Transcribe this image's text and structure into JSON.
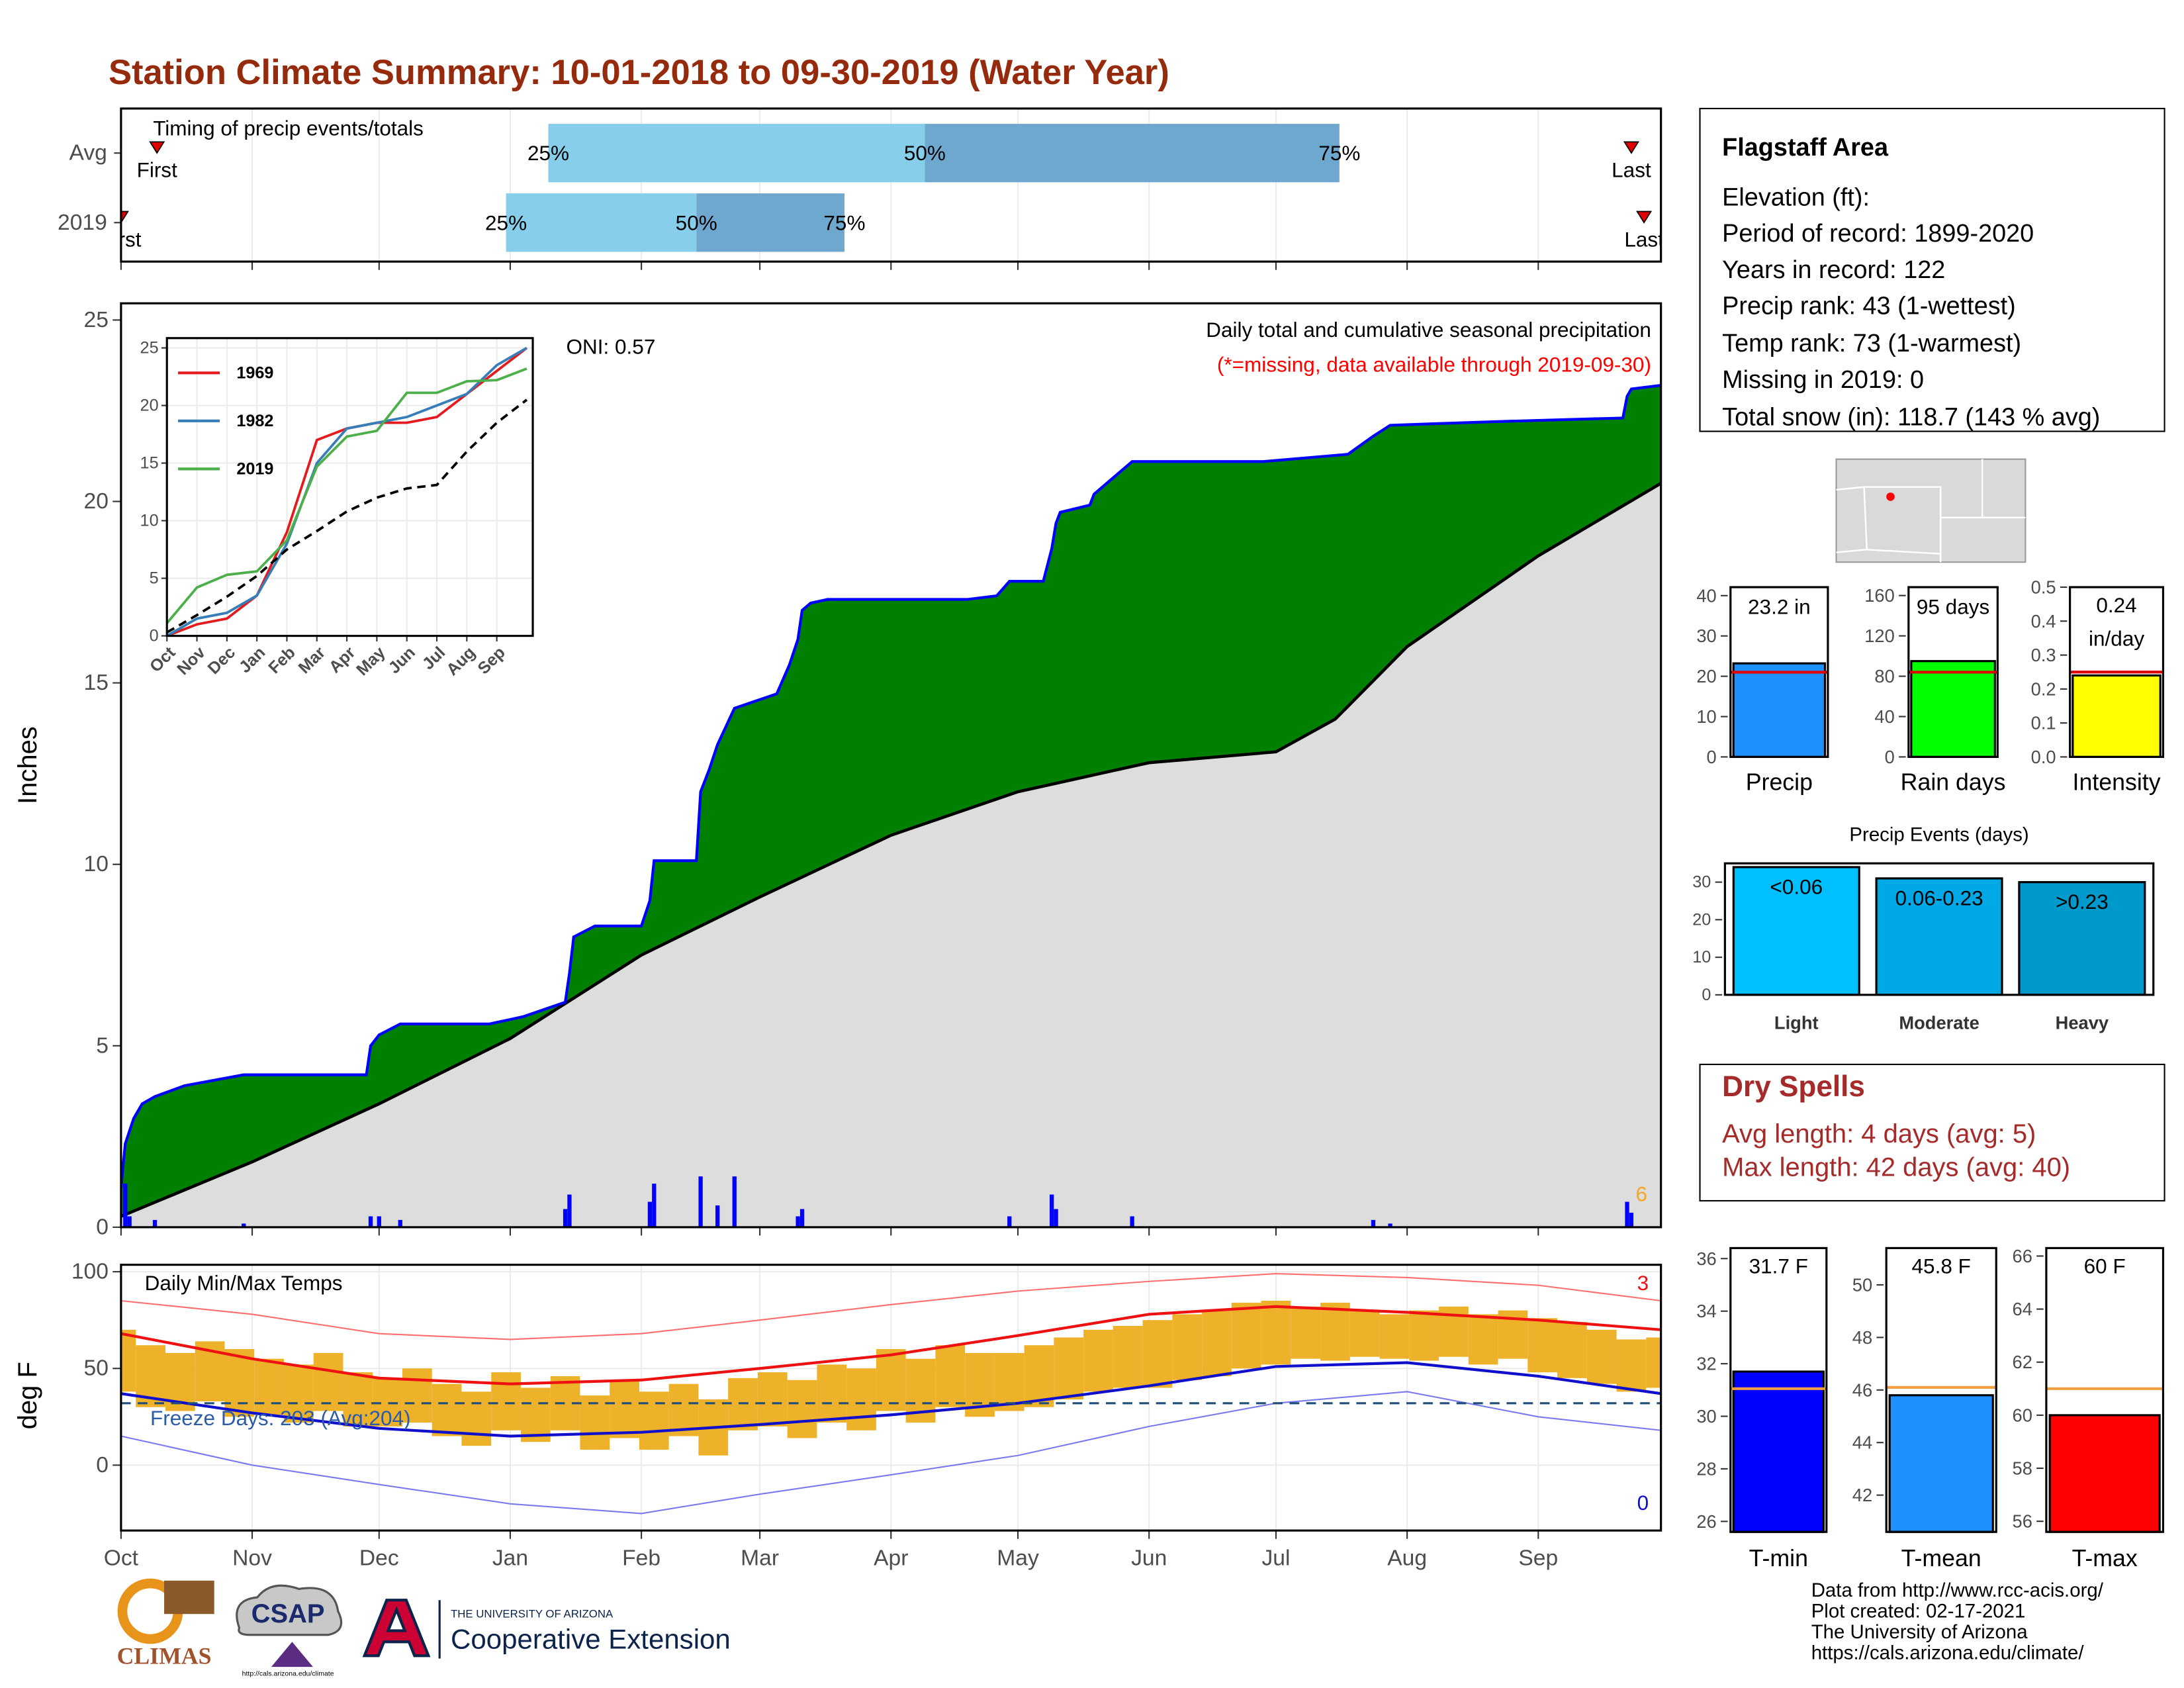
{
  "title": "Station Climate Summary: 10-01-2018 to 09-30-2019 (Water Year)",
  "chart_data": [
    {
      "type": "timing",
      "title": "Timing of precip events/totals",
      "categories": [
        "Avg",
        "2019"
      ],
      "xlim": [
        0,
        364
      ],
      "rows": [
        {
          "first": 8.5,
          "q25": 101,
          "q50": 190,
          "q75": 288,
          "last": 357
        },
        {
          "first": 0,
          "q25": 91,
          "q50": 136,
          "q75": 171,
          "last": 360
        }
      ],
      "marker_labels": [
        "First",
        "Last"
      ],
      "quartile_labels": [
        "25%",
        "50%",
        "75%"
      ],
      "colors": [
        "#87ceeb",
        "#6fa8cf"
      ],
      "marker_color": "#e00000"
    },
    {
      "type": "area",
      "title": "Daily total and cumulative seasonal precipitation",
      "subtitle": "(*=missing, data available through 2019-09-30)",
      "annotation": "ONI: 0.57",
      "record_days": 6,
      "ylabel": "Inches",
      "xlim": [
        0,
        364
      ],
      "ylim": [
        0,
        25.46
      ],
      "yticks": [
        0,
        5,
        10,
        15,
        20,
        25
      ],
      "cumulative": {
        "color": "#008000",
        "line_color": "#0000ff",
        "x": [
          0,
          1,
          3,
          5,
          8,
          15,
          29,
          58,
          59,
          61,
          66,
          87,
          95,
          105,
          106,
          107,
          112,
          123,
          125,
          126,
          136,
          137,
          139,
          141,
          145,
          155,
          158,
          160,
          161,
          163,
          167,
          200,
          207,
          210,
          218,
          220,
          221,
          222,
          229,
          230,
          235,
          239,
          270,
          290,
          296,
          300,
          325,
          355,
          356,
          357,
          364
        ],
        "values": [
          1.1,
          2.3,
          3.0,
          3.4,
          3.6,
          3.9,
          4.2,
          4.2,
          5.0,
          5.3,
          5.6,
          5.6,
          5.8,
          6.2,
          7.0,
          8.0,
          8.3,
          8.3,
          9.0,
          10.1,
          10.1,
          12.0,
          12.6,
          13.3,
          14.3,
          14.7,
          15.5,
          16.2,
          17.0,
          17.2,
          17.3,
          17.3,
          17.4,
          17.8,
          17.8,
          18.7,
          19.4,
          19.7,
          19.9,
          20.2,
          20.7,
          21.1,
          21.1,
          21.3,
          21.8,
          22.1,
          22.2,
          22.3,
          22.9,
          23.1,
          23.2
        ]
      },
      "average": {
        "color": "#dddddd",
        "line_color": "#000000",
        "x": [
          0,
          31,
          61,
          92,
          123,
          151,
          182,
          212,
          243,
          273,
          287,
          304,
          335,
          364
        ],
        "values": [
          0.3,
          1.8,
          3.4,
          5.2,
          7.5,
          9.1,
          10.8,
          12.0,
          12.8,
          13.1,
          14.0,
          16.0,
          18.5,
          20.5
        ]
      },
      "daily": {
        "color": "#0000ff",
        "x": [
          1,
          2,
          8,
          29,
          59,
          61,
          66,
          105,
          106,
          125,
          126,
          137,
          141,
          145,
          160,
          161,
          210,
          220,
          221,
          239,
          296,
          300,
          356,
          357
        ],
        "values": [
          1.2,
          0.3,
          0.2,
          0.1,
          0.3,
          0.3,
          0.2,
          0.5,
          0.9,
          0.7,
          1.2,
          1.4,
          0.6,
          1.4,
          0.3,
          0.5,
          0.3,
          0.9,
          0.5,
          0.3,
          0.2,
          0.1,
          0.7,
          0.4
        ]
      }
    },
    {
      "type": "line",
      "x": [
        0,
        1,
        2,
        3,
        4,
        5,
        6,
        7,
        8,
        9,
        10,
        11,
        12
      ],
      "xlim": [
        0,
        12.2
      ],
      "ylim": [
        0,
        25.85
      ],
      "yticks": [
        0,
        5,
        10,
        15,
        20,
        25
      ],
      "xticks": [
        {
          "value": 0,
          "label": "Oct"
        },
        {
          "value": 1,
          "label": "Nov"
        },
        {
          "value": 2,
          "label": "Dec"
        },
        {
          "value": 3,
          "label": "Jan"
        },
        {
          "value": 4,
          "label": "Feb"
        },
        {
          "value": 5,
          "label": "Mar"
        },
        {
          "value": 6,
          "label": "Apr"
        },
        {
          "value": 7,
          "label": "May"
        },
        {
          "value": 8,
          "label": "Jun"
        },
        {
          "value": 9,
          "label": "Jul"
        },
        {
          "value": 10,
          "label": "Aug"
        },
        {
          "value": 11,
          "label": "Sep"
        }
      ],
      "grid": true,
      "legend": "top-left",
      "series": [
        {
          "name": "1969",
          "color": "#e41a1c",
          "values": [
            0,
            1,
            1.5,
            3.5,
            9,
            17,
            18,
            18.5,
            18.5,
            19,
            21,
            23,
            25
          ]
        },
        {
          "name": "1982",
          "color": "#377eb8",
          "values": [
            0,
            1.5,
            2,
            3.5,
            8,
            15,
            18,
            18.5,
            19,
            20,
            21,
            23.5,
            25
          ]
        },
        {
          "name": "2019",
          "color": "#4daf4a",
          "values": [
            1.1,
            4.2,
            5.3,
            5.6,
            8.3,
            14.7,
            17.3,
            17.8,
            21.1,
            21.1,
            22.1,
            22.2,
            23.2
          ]
        },
        {
          "color": "#000000",
          "dash": true,
          "values": [
            0.3,
            1.8,
            3.4,
            5.2,
            7.5,
            9.1,
            10.8,
            12.0,
            12.8,
            13.1,
            16.0,
            18.5,
            20.5
          ]
        }
      ]
    },
    {
      "type": "temperature",
      "title": "Daily Min/Max Temps",
      "annotation": "Freeze Days: 203 (Avg:204)",
      "record_high_days": 3,
      "record_low_days": 0,
      "ylabel": "deg F",
      "xlim": [
        0,
        364
      ],
      "ylim": [
        -33.8,
        103.6
      ],
      "yticks": [
        0,
        50,
        100
      ],
      "freeze_line": 32,
      "xticks": [
        {
          "value": 0,
          "label": "Oct"
        },
        {
          "value": 31,
          "label": "Nov"
        },
        {
          "value": 61,
          "label": "Dec"
        },
        {
          "value": 92,
          "label": "Jan"
        },
        {
          "value": 123,
          "label": "Feb"
        },
        {
          "value": 151,
          "label": "Mar"
        },
        {
          "value": 182,
          "label": "Apr"
        },
        {
          "value": 212,
          "label": "May"
        },
        {
          "value": 243,
          "label": "Jun"
        },
        {
          "value": 273,
          "label": "Jul"
        },
        {
          "value": 304,
          "label": "Aug"
        },
        {
          "value": 335,
          "label": "Sep"
        }
      ],
      "daily": {
        "color": "#eeb12a",
        "x": [
          0,
          7,
          14,
          21,
          28,
          35,
          42,
          49,
          56,
          63,
          70,
          77,
          84,
          91,
          98,
          105,
          112,
          119,
          126,
          133,
          140,
          147,
          154,
          161,
          168,
          175,
          182,
          189,
          196,
          203,
          210,
          217,
          224,
          231,
          238,
          245,
          252,
          259,
          266,
          273,
          280,
          287,
          294,
          301,
          308,
          315,
          322,
          329,
          336,
          343,
          350,
          357,
          364
        ],
        "max": [
          70,
          62,
          58,
          64,
          60,
          55,
          52,
          58,
          48,
          45,
          50,
          42,
          38,
          48,
          40,
          46,
          36,
          44,
          38,
          42,
          34,
          45,
          48,
          44,
          52,
          50,
          60,
          55,
          62,
          58,
          58,
          62,
          66,
          70,
          72,
          75,
          78,
          80,
          84,
          85,
          82,
          84,
          80,
          78,
          80,
          82,
          78,
          80,
          76,
          74,
          70,
          65,
          66
        ],
        "min": [
          38,
          30,
          28,
          33,
          25,
          26,
          22,
          28,
          20,
          20,
          22,
          15,
          10,
          18,
          12,
          18,
          8,
          14,
          8,
          15,
          5,
          18,
          20,
          14,
          22,
          18,
          28,
          22,
          30,
          25,
          28,
          30,
          34,
          38,
          40,
          40,
          44,
          46,
          50,
          52,
          55,
          54,
          56,
          55,
          54,
          56,
          52,
          55,
          48,
          45,
          42,
          38,
          40
        ]
      },
      "normals": {
        "x": [
          0,
          31,
          61,
          92,
          123,
          151,
          182,
          212,
          243,
          273,
          304,
          335,
          364
        ],
        "max": [
          68,
          55,
          45,
          42,
          44,
          50,
          57,
          67,
          78,
          82,
          79,
          75,
          70
        ],
        "min": [
          37,
          27,
          19,
          15,
          17,
          21,
          26,
          32,
          41,
          51,
          53,
          46,
          37
        ],
        "max_color": "#ee1111",
        "min_color": "#1010cc"
      },
      "records": {
        "x": [
          0,
          31,
          61,
          92,
          123,
          151,
          182,
          212,
          243,
          273,
          304,
          335,
          364
        ],
        "max": [
          85,
          78,
          68,
          65,
          68,
          75,
          83,
          90,
          95,
          99,
          97,
          93,
          85
        ],
        "min": [
          15,
          0,
          -10,
          -20,
          -25,
          -15,
          -5,
          5,
          20,
          32,
          38,
          25,
          18
        ],
        "max_color": "#ff6f6f",
        "min_color": "#7a7aee"
      }
    },
    {
      "type": "bar",
      "categories": [
        "Precip"
      ],
      "values": [
        23.2
      ],
      "value_labels": [
        "23.2 in"
      ],
      "color": "#1e90ff",
      "average": 21.0,
      "average_color": "#e00000",
      "ylim": [
        0,
        42.1
      ],
      "yticks": [
        0,
        10,
        20,
        30,
        40
      ]
    },
    {
      "type": "bar",
      "categories": [
        "Rain days"
      ],
      "values": [
        95
      ],
      "value_labels": [
        "95 days"
      ],
      "color": "#00ff00",
      "average": 84,
      "average_color": "#e00000",
      "ylim": [
        0,
        168.3
      ],
      "yticks": [
        0,
        40,
        80,
        120,
        160
      ]
    },
    {
      "type": "bar",
      "categories": [
        "Intensity"
      ],
      "values": [
        0.24
      ],
      "value_labels": [
        "0.24 in/day"
      ],
      "color": "#ffff00",
      "average": 0.25,
      "average_color": "#e00000",
      "ylim": [
        0,
        0.5
      ],
      "yticks": [
        {
          "value": 0,
          "label": "0.0"
        },
        {
          "value": 0.1,
          "label": "0.1"
        },
        {
          "value": 0.2,
          "label": "0.2"
        },
        {
          "value": 0.3,
          "label": "0.3"
        },
        {
          "value": 0.4,
          "label": "0.4"
        },
        {
          "value": 0.5,
          "label": "0.5"
        }
      ]
    },
    {
      "type": "bar",
      "title": "Precip Events (days)",
      "categories": [
        "Light",
        "Moderate",
        "Heavy"
      ],
      "values": [
        34,
        31,
        30
      ],
      "bar_labels": [
        "<0.06",
        "0.06-0.23",
        ">0.23"
      ],
      "colors": [
        "#00bfff",
        "#00a8e6",
        "#0099cc"
      ],
      "ylim": [
        0,
        35
      ],
      "yticks": [
        0,
        10,
        20,
        30
      ]
    },
    {
      "type": "bar",
      "categories": [
        "T-min"
      ],
      "values": [
        31.7
      ],
      "value_labels": [
        "31.7 F"
      ],
      "color": "#0000ff",
      "average": 31.05,
      "average_color": "#f0a040",
      "ylim": [
        25.6,
        36.4
      ],
      "yticks": [
        26,
        28,
        30,
        32,
        34,
        36
      ]
    },
    {
      "type": "bar",
      "categories": [
        "T-mean"
      ],
      "values": [
        45.8
      ],
      "value_labels": [
        "45.8 F"
      ],
      "color": "#1e90ff",
      "average": 46.1,
      "average_color": "#f0a040",
      "ylim": [
        40.6,
        51.4
      ],
      "yticks": [
        42,
        44,
        46,
        48,
        50
      ]
    },
    {
      "type": "bar",
      "categories": [
        "T-max"
      ],
      "values": [
        60
      ],
      "value_labels": [
        "60 F"
      ],
      "color": "#ff0000",
      "average": 61,
      "average_color": "#f0a040",
      "ylim": [
        55.6,
        66.3
      ],
      "yticks": [
        56,
        58,
        60,
        62,
        64,
        66
      ]
    }
  ],
  "station_info": {
    "title": "Flagstaff Area",
    "lines": [
      "Elevation (ft):",
      "Period of record: 1899-2020",
      "Years in record: 122",
      "Precip rank: 43 (1-wettest)",
      "Temp rank: 73 (1-warmest)",
      "Missing in 2019: 0",
      "Total snow (in): 118.7 (143 % avg)"
    ]
  },
  "dry_spells": {
    "title": "Dry Spells",
    "lines": [
      "Avg length: 4 days (avg: 5)",
      "Max length: 42 days (avg: 40)"
    ]
  },
  "footer": {
    "lines": [
      "Data from http://www.rcc-acis.org/",
      "Plot created: 02-17-2021",
      "The University of Arizona",
      "https://cals.arizona.edu/climate/"
    ]
  },
  "logos": {
    "climas": "CLIMAS",
    "csap": "CSAP",
    "csap_url": "http://cals.arizona.edu/climate",
    "university": "THE UNIVERSITY OF ARIZONA",
    "extension": "Cooperative Extension"
  }
}
